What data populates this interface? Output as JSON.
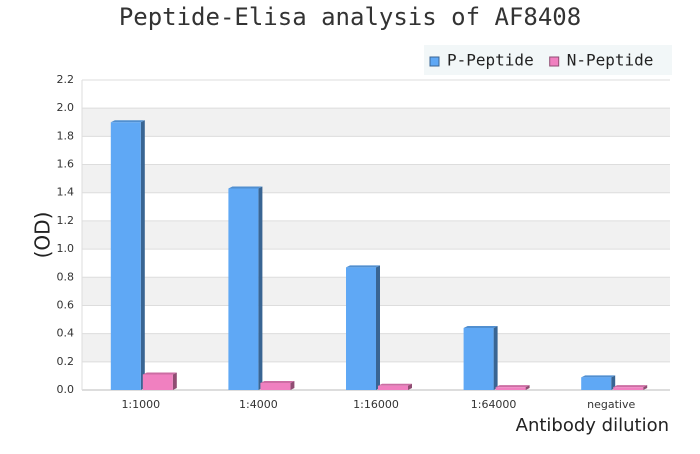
{
  "chart_data": {
    "type": "bar",
    "title": "Peptide-Elisa analysis of AF8408",
    "y_label": "(OD)",
    "x_label": "Antibody dilution",
    "categories": [
      "1:1000",
      "1:4000",
      "1:16000",
      "1:64000",
      "negative"
    ],
    "series": [
      {
        "name": "P-Peptide",
        "color": "#5fa8f5",
        "values": [
          1.9,
          1.43,
          0.87,
          0.44,
          0.09
        ]
      },
      {
        "name": "N-Peptide",
        "color": "#f080c0",
        "values": [
          0.11,
          0.05,
          0.03,
          0.02,
          0.02
        ]
      }
    ],
    "ylim": [
      0,
      2.2
    ],
    "yticks": [
      {
        "value": 0,
        "label": "0.0"
      },
      0.2,
      0.4,
      0.6,
      0.8,
      {
        "value": 1,
        "label": "1.0"
      },
      1.2,
      1.4,
      1.6,
      1.8,
      {
        "value": 2,
        "label": "2.0"
      },
      2.2
    ],
    "grid": true,
    "legend": "top-right"
  }
}
